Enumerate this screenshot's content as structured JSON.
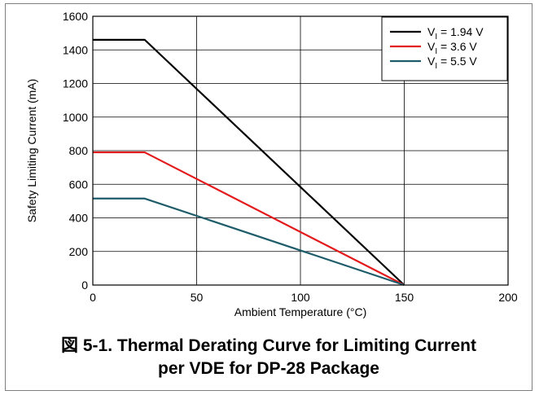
{
  "chart_data": {
    "type": "line",
    "xlabel": "Ambient Temperature (°C)",
    "ylabel": "Safety Limiting Current (mA)",
    "xlim": [
      0,
      200
    ],
    "ylim": [
      0,
      1600
    ],
    "xticks": [
      0,
      50,
      100,
      150,
      200
    ],
    "yticks": [
      0,
      200,
      400,
      600,
      800,
      1000,
      1200,
      1400,
      1600
    ],
    "grid": true,
    "legend_position": "top-right",
    "series": [
      {
        "name": "VI = 1.94 V",
        "name_main": "V",
        "name_sub": "I",
        "name_rest": " = 1.94 V",
        "color": "#000000",
        "x": [
          0,
          25,
          150
        ],
        "y": [
          1460,
          1460,
          0
        ]
      },
      {
        "name": "VI = 3.6 V",
        "name_main": "V",
        "name_sub": "I",
        "name_rest": " = 3.6 V",
        "color": "#e31a1c",
        "x": [
          0,
          25,
          150
        ],
        "y": [
          790,
          790,
          0
        ]
      },
      {
        "name": "VI = 5.5 V",
        "name_main": "V",
        "name_sub": "I",
        "name_rest": " = 5.5 V",
        "color": "#1f5c6b",
        "x": [
          0,
          25,
          150
        ],
        "y": [
          515,
          515,
          0
        ]
      }
    ]
  },
  "caption": {
    "line1": "図 5-1. Thermal Derating Curve for Limiting Current",
    "line2": "per VDE for DP-28 Package"
  }
}
